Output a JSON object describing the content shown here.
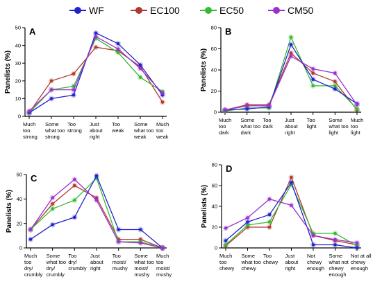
{
  "legend": [
    {
      "name": "WF",
      "color": "#2222cc"
    },
    {
      "name": "EC100",
      "color": "#b03a2e"
    },
    {
      "name": "EC50",
      "color": "#33bb33"
    },
    {
      "name": "CM50",
      "color": "#9b30d0"
    }
  ],
  "chart_data": [
    {
      "type": "line",
      "panel": "A",
      "ylabel": "Panelists (%)",
      "ylim": [
        0,
        50
      ],
      "yticks": [
        0,
        10,
        20,
        30,
        40,
        50
      ],
      "grid": false,
      "categories": [
        [
          "Much",
          "too",
          "strong"
        ],
        [
          "Some",
          "what too",
          "strong"
        ],
        [
          "Too",
          "strong"
        ],
        [
          "Just",
          "about",
          "right"
        ],
        [
          "Too",
          "weak"
        ],
        [
          "Some",
          "what too",
          "weak"
        ],
        [
          "Much",
          "too",
          "weak"
        ]
      ],
      "series": [
        {
          "name": "WF",
          "values": [
            2,
            10,
            12,
            47,
            41,
            29,
            12
          ]
        },
        {
          "name": "EC100",
          "values": [
            2,
            20,
            24,
            39,
            37,
            28,
            8
          ]
        },
        {
          "name": "EC50",
          "values": [
            2,
            15,
            17,
            44,
            36,
            22,
            14
          ]
        },
        {
          "name": "CM50",
          "values": [
            3,
            15,
            15,
            45,
            38,
            27,
            13
          ]
        }
      ]
    },
    {
      "type": "line",
      "panel": "B",
      "ylabel": "Panelists (%)",
      "ylim": [
        0,
        80
      ],
      "yticks": [
        0,
        20,
        40,
        60,
        80
      ],
      "grid": false,
      "categories": [
        [
          "Much",
          "too",
          "dark"
        ],
        [
          "Some",
          "what too",
          "dark"
        ],
        [
          "Too",
          "dark"
        ],
        [
          "Just",
          "about",
          "right"
        ],
        [
          "Too",
          "light"
        ],
        [
          "Some",
          "what too",
          "light"
        ],
        [
          "Much",
          "too",
          "light"
        ]
      ],
      "series": [
        {
          "name": "WF",
          "values": [
            2,
            3,
            5,
            64,
            31,
            22,
            8
          ]
        },
        {
          "name": "EC100",
          "values": [
            2,
            7,
            7,
            56,
            37,
            29,
            2
          ]
        },
        {
          "name": "EC50",
          "values": [
            1,
            4,
            4,
            71,
            25,
            25,
            3
          ]
        },
        {
          "name": "CM50",
          "values": [
            2,
            6,
            6,
            53,
            41,
            37,
            7
          ]
        }
      ]
    },
    {
      "type": "line",
      "panel": "C",
      "ylabel": "Panelists (%)",
      "ylim": [
        0,
        60
      ],
      "yticks": [
        0,
        20,
        40,
        60
      ],
      "grid": false,
      "categories": [
        [
          "Much",
          "too",
          "dry/",
          "crumbly"
        ],
        [
          "Some",
          "what too",
          "dry/",
          "crumbly"
        ],
        [
          "Too",
          "dry/",
          "crumbly"
        ],
        [
          "Just",
          "about",
          "right"
        ],
        [
          "Too",
          "moist/",
          "mushy"
        ],
        [
          "Some",
          "what too",
          "moist/",
          "mushy"
        ],
        [
          "Much",
          "too",
          "moist/",
          "mushy"
        ]
      ],
      "series": [
        {
          "name": "WF",
          "values": [
            7,
            19,
            25,
            59,
            15,
            15,
            0
          ]
        },
        {
          "name": "EC100",
          "values": [
            15,
            36,
            51,
            41,
            7,
            7,
            0
          ]
        },
        {
          "name": "EC50",
          "values": [
            15,
            32,
            39,
            57,
            5,
            5,
            0
          ]
        },
        {
          "name": "CM50",
          "values": [
            15,
            41,
            56,
            39,
            5,
            4,
            0
          ]
        }
      ]
    },
    {
      "type": "line",
      "panel": "D",
      "ylabel": "Panelists (%)",
      "ylim": [
        0,
        80
      ],
      "yticks": [
        0,
        20,
        40,
        60,
        80
      ],
      "grid": false,
      "categories": [
        [
          "Much",
          "too",
          "chewy"
        ],
        [
          "Some",
          "what too",
          "chewy"
        ],
        [
          "Too",
          "chewy"
        ],
        [
          "Just",
          "about",
          "right"
        ],
        [
          "Not",
          "chewy",
          "enough"
        ],
        [
          "Some",
          "what not",
          "chewy",
          "enough"
        ],
        [
          "Not at all",
          "chewy",
          "enough"
        ]
      ],
      "series": [
        {
          "name": "WF",
          "values": [
            7,
            25,
            32,
            63,
            3,
            3,
            0
          ]
        },
        {
          "name": "EC100",
          "values": [
            2,
            20,
            20,
            68,
            12,
            7,
            3
          ]
        },
        {
          "name": "EC50",
          "values": [
            3,
            22,
            25,
            61,
            14,
            14,
            2
          ]
        },
        {
          "name": "CM50",
          "values": [
            19,
            29,
            47,
            41,
            12,
            8,
            5
          ]
        }
      ]
    }
  ]
}
